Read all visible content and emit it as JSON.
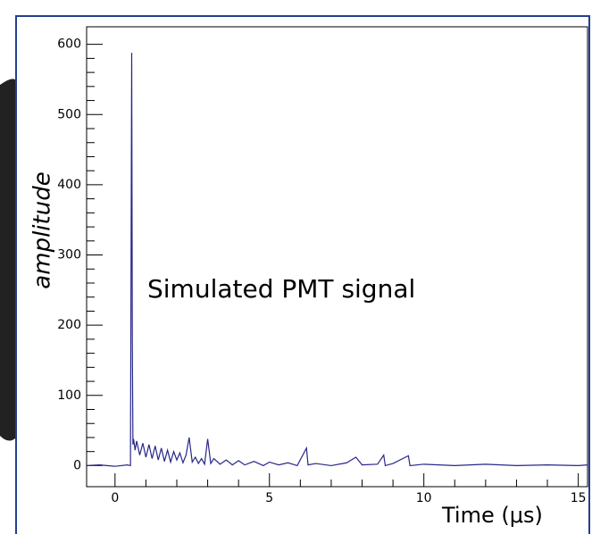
{
  "chart_data": {
    "type": "line",
    "annotation": "Simulated PMT signal",
    "xlabel": "Time (μs)",
    "ylabel": "amplitude",
    "x": [
      -0.9,
      -0.5,
      0,
      0.4,
      0.5,
      0.52,
      0.54,
      0.56,
      0.58,
      0.6,
      0.65,
      0.7,
      0.8,
      0.9,
      1.0,
      1.1,
      1.2,
      1.3,
      1.4,
      1.5,
      1.6,
      1.7,
      1.8,
      1.9,
      2.0,
      2.1,
      2.2,
      2.3,
      2.4,
      2.5,
      2.6,
      2.7,
      2.8,
      2.9,
      3.0,
      3.1,
      3.2,
      3.4,
      3.6,
      3.8,
      4.0,
      4.2,
      4.5,
      4.8,
      5.0,
      5.3,
      5.6,
      5.9,
      6.2,
      6.25,
      6.5,
      7.0,
      7.5,
      7.8,
      8.0,
      8.5,
      8.7,
      8.75,
      9.0,
      9.5,
      9.55,
      10,
      11,
      12,
      13,
      14,
      15,
      15.3
    ],
    "values": [
      0,
      1,
      -1,
      1,
      0,
      298,
      588,
      178,
      30,
      38,
      22,
      35,
      15,
      32,
      12,
      30,
      10,
      28,
      8,
      25,
      6,
      22,
      5,
      20,
      8,
      18,
      4,
      15,
      40,
      5,
      12,
      3,
      10,
      2,
      38,
      3,
      10,
      2,
      8,
      1,
      7,
      1,
      6,
      0,
      5,
      1,
      4,
      0,
      25,
      1,
      3,
      0,
      4,
      12,
      1,
      2,
      15,
      0,
      3,
      14,
      0,
      2,
      0,
      2,
      0,
      1,
      0,
      1
    ],
    "color": "#27278a",
    "xlim": [
      -0.92,
      15.3
    ],
    "ylim": [
      -30,
      625
    ],
    "xticks": [
      0,
      5,
      10,
      15
    ],
    "yticks": [
      0,
      100,
      200,
      300,
      400,
      500,
      600
    ]
  }
}
